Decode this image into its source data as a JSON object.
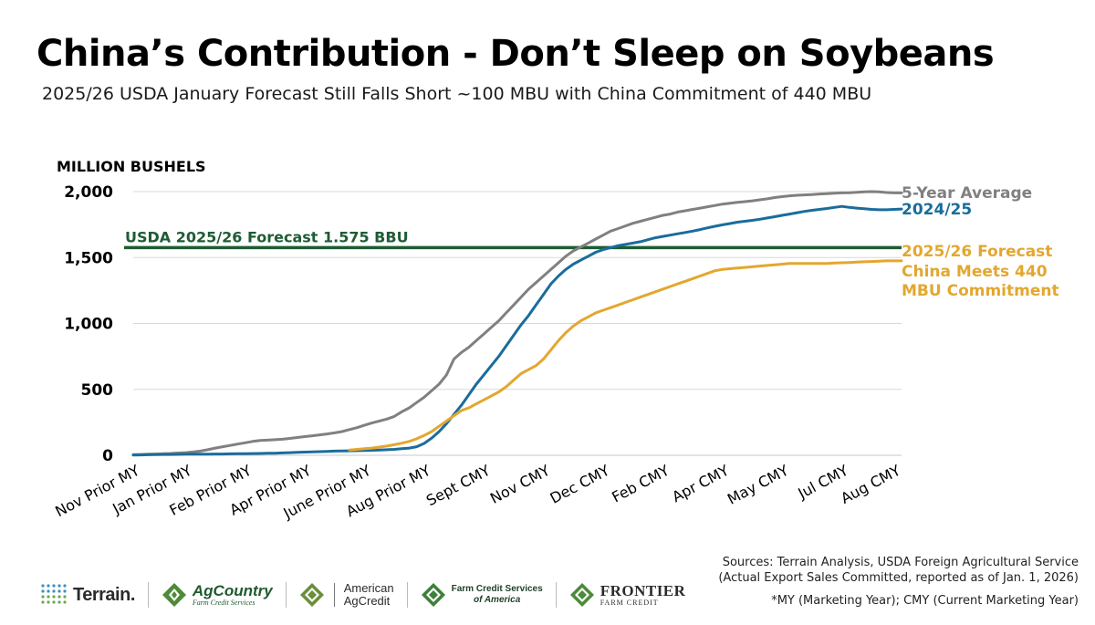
{
  "header": {
    "title": "China’s Contribution - Don’t Sleep on Soybeans",
    "subtitle": "2025/26 USDA January Forecast Still Falls Short ~100 MBU with China Commitment of 440 MBU"
  },
  "chart_data": {
    "type": "line",
    "ylabel": "MILLION BUSHELS",
    "ylim": [
      0,
      2000
    ],
    "yticks": [
      0,
      500,
      1000,
      1500,
      2000
    ],
    "ytick_labels": [
      "0",
      "500",
      "1,000",
      "1,500",
      "2,000"
    ],
    "x_labels": [
      "Nov Prior MY",
      "Jan Prior MY",
      "Feb Prior MY",
      "Apr Prior MY",
      "June Prior MY",
      "Aug Prior MY",
      "Sept CMY",
      "Nov CMY",
      "Dec CMY",
      "Feb CMY",
      "Apr CMY",
      "May CMY",
      "Jul CMY",
      "Aug CMY"
    ],
    "x_label_positions": [
      1,
      8,
      16,
      24,
      32,
      40,
      48,
      56,
      64,
      72,
      80,
      88,
      96,
      103
    ],
    "x_range": [
      0,
      103
    ],
    "grid": true,
    "reference_line": {
      "label": "USDA 2025/26 Forecast 1.575 BBU",
      "value": 1575,
      "color": "#1e5c34"
    },
    "series": [
      {
        "name": "5-Year Average",
        "color": "#808080",
        "x_start": 0,
        "values": [
          5,
          6,
          8,
          10,
          12,
          14,
          17,
          20,
          25,
          32,
          42,
          55,
          65,
          75,
          85,
          95,
          105,
          112,
          115,
          118,
          122,
          128,
          135,
          142,
          148,
          155,
          162,
          170,
          180,
          195,
          210,
          228,
          245,
          260,
          275,
          295,
          330,
          360,
          400,
          440,
          490,
          540,
          610,
          730,
          780,
          820,
          870,
          920,
          970,
          1020,
          1080,
          1140,
          1200,
          1260,
          1310,
          1360,
          1410,
          1460,
          1510,
          1550,
          1580,
          1610,
          1640,
          1670,
          1700,
          1720,
          1740,
          1760,
          1775,
          1790,
          1805,
          1820,
          1830,
          1845,
          1855,
          1865,
          1875,
          1885,
          1895,
          1905,
          1912,
          1918,
          1924,
          1930,
          1938,
          1945,
          1955,
          1962,
          1968,
          1972,
          1975,
          1978,
          1982,
          1985,
          1988,
          1990,
          1992,
          1995,
          1998,
          2000,
          1998,
          1993,
          1990,
          1990
        ]
      },
      {
        "name": "2024/25",
        "color": "#1a6c9c",
        "x_start": 0,
        "values": [
          2,
          3,
          4,
          5,
          6,
          6,
          7,
          8,
          8,
          9,
          9,
          10,
          10,
          11,
          12,
          12,
          13,
          14,
          15,
          16,
          18,
          20,
          22,
          24,
          26,
          28,
          30,
          32,
          33,
          34,
          35,
          36,
          38,
          40,
          42,
          45,
          50,
          55,
          65,
          90,
          130,
          180,
          240,
          310,
          380,
          460,
          540,
          610,
          680,
          750,
          830,
          910,
          990,
          1060,
          1140,
          1220,
          1300,
          1360,
          1410,
          1450,
          1480,
          1510,
          1540,
          1560,
          1575,
          1590,
          1600,
          1610,
          1620,
          1635,
          1650,
          1660,
          1670,
          1680,
          1690,
          1700,
          1712,
          1725,
          1737,
          1748,
          1758,
          1768,
          1775,
          1782,
          1790,
          1800,
          1810,
          1820,
          1830,
          1840,
          1850,
          1858,
          1865,
          1872,
          1880,
          1888,
          1880,
          1875,
          1870,
          1865,
          1862,
          1862,
          1865,
          1868
        ]
      },
      {
        "name": "2025/26 Forecast China Meets 440 MBU Commitment",
        "color": "#e3a72f",
        "x_start": 29,
        "values": [
          40,
          45,
          50,
          55,
          62,
          70,
          80,
          92,
          105,
          125,
          150,
          180,
          220,
          260,
          300,
          340,
          360,
          390,
          420,
          450,
          480,
          520,
          570,
          620,
          650,
          680,
          730,
          800,
          870,
          930,
          980,
          1020,
          1050,
          1080,
          1100,
          1120,
          1140,
          1160,
          1180,
          1200,
          1220,
          1240,
          1260,
          1280,
          1300,
          1320,
          1340,
          1360,
          1380,
          1400,
          1410,
          1415,
          1420,
          1425,
          1430,
          1435,
          1440,
          1445,
          1450,
          1455,
          1455,
          1455,
          1455,
          1455,
          1455,
          1458,
          1460,
          1462,
          1465,
          1468,
          1470,
          1472,
          1475,
          1475,
          1475
        ]
      }
    ],
    "series_labels": [
      {
        "lines": [
          "5-Year Average"
        ],
        "color": "#808080"
      },
      {
        "lines": [
          "2024/25"
        ],
        "color": "#1a6c9c"
      },
      {
        "lines": [
          "2025/26 Forecast",
          "China Meets 440",
          "MBU Commitment"
        ],
        "color": "#e3a72f"
      }
    ]
  },
  "footer": {
    "sources_line1": "Sources: Terrain Analysis, USDA Foreign Agricultural Service",
    "sources_line2": "(Actual Export Sales Committed, reported as of Jan. 1, 2026)",
    "footnote": "*MY (Marketing Year); CMY (Current Marketing Year)",
    "logos": {
      "terrain": "Terrain.",
      "agcountry_main": "AgCountry",
      "agcountry_sub": "Farm Credit Services",
      "american_agcredit_1": "American",
      "american_agcredit_2": "AgCredit",
      "fcsamerica_1": "Farm Credit Services",
      "fcsamerica_2": "of America",
      "frontier_main": "FRONTIER",
      "frontier_sub": "FARM CREDIT"
    }
  }
}
